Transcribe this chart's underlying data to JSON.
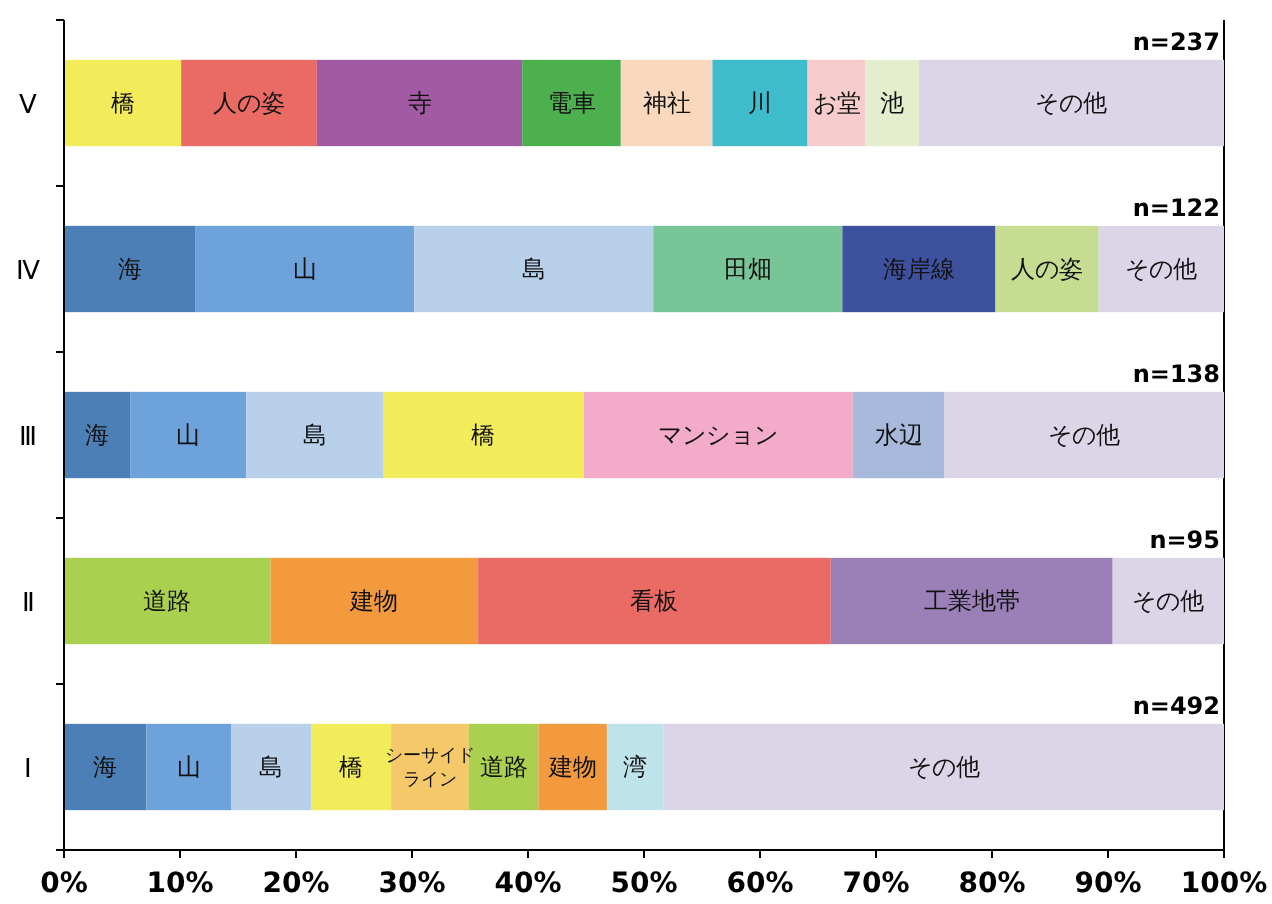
{
  "chart_data": {
    "type": "bar",
    "orientation": "horizontal",
    "stacked": true,
    "categories": [
      "Ⅴ",
      "Ⅳ",
      "Ⅲ",
      "Ⅱ",
      "Ⅰ"
    ],
    "xlim": [
      0,
      100
    ],
    "xticks": [
      {
        "value": 0,
        "label": "0%"
      },
      {
        "value": 10,
        "label": "10%"
      },
      {
        "value": 20,
        "label": "20%"
      },
      {
        "value": 30,
        "label": "30%"
      },
      {
        "value": 40,
        "label": "40%"
      },
      {
        "value": 50,
        "label": "50%"
      },
      {
        "value": 60,
        "label": "60%"
      },
      {
        "value": 70,
        "label": "70%"
      },
      {
        "value": 80,
        "label": "80%"
      },
      {
        "value": 90,
        "label": "90%"
      },
      {
        "value": 100,
        "label": "100%"
      }
    ],
    "grid": false,
    "series": [
      {
        "values": [
          10.1,
          11.3,
          5.7,
          17.8,
          7.1
        ],
        "colors": [
          "#f2ec5a",
          "#4b7fb5",
          "#4b7fb5",
          "#a9d04f",
          "#4b7fb5"
        ],
        "value_labels": [
          "橋",
          "海",
          "海",
          "道路",
          "海"
        ]
      },
      {
        "values": [
          11.7,
          18.9,
          10.0,
          17.9,
          7.3
        ],
        "colors": [
          "#ea6a64",
          "#6ea2da",
          "#6ea2da",
          "#f39a3f",
          "#6ea2da"
        ],
        "value_labels": [
          "人の姿",
          "山",
          "山",
          "建物",
          "山"
        ]
      },
      {
        "values": [
          17.7,
          20.6,
          11.8,
          30.4,
          6.9
        ],
        "colors": [
          "#a35aa5",
          "#b9d0ea",
          "#b9d0ea",
          "#ea6a64",
          "#b9d0ea"
        ],
        "value_labels": [
          "寺",
          "島",
          "島",
          "看板",
          "島"
        ]
      },
      {
        "values": [
          8.5,
          16.3,
          17.3,
          24.3,
          6.9
        ],
        "colors": [
          "#4db04f",
          "#78c597",
          "#f2ec5a",
          "#9b80b8",
          "#f2ec5a"
        ],
        "value_labels": [
          "電車",
          "田畑",
          "橋",
          "工業地帯",
          "橋"
        ]
      },
      {
        "values": [
          7.9,
          13.2,
          23.2,
          9.6,
          6.7
        ],
        "colors": [
          "#f9d8bd",
          "#3e519f",
          "#f2abc9",
          "#dcd5e8",
          "#f5c96a"
        ],
        "value_labels": [
          "神社",
          "海岸線",
          "マンション",
          "その他",
          "シーサイドライン"
        ]
      },
      {
        "values": [
          8.2,
          8.9,
          7.9,
          null,
          6.0
        ],
        "colors": [
          "#3fbccb",
          "#c6dd91",
          "#a9b9dc",
          null,
          "#a9d04f"
        ],
        "value_labels": [
          "川",
          "人の姿",
          "水辺",
          null,
          "道路"
        ]
      },
      {
        "values": [
          5.0,
          10.8,
          24.1,
          null,
          5.9
        ],
        "colors": [
          "#f6cccc",
          "#dcd5e8",
          "#dcd5e8",
          null,
          "#f39a3f"
        ],
        "value_labels": [
          "お堂",
          "その他",
          "その他",
          null,
          "建物"
        ]
      },
      {
        "values": [
          4.6,
          null,
          null,
          null,
          4.9
        ],
        "colors": [
          "#e4edcc",
          null,
          null,
          null,
          "#bfe3ea"
        ],
        "value_labels": [
          "池",
          null,
          null,
          null,
          "湾"
        ]
      },
      {
        "values": [
          26.3,
          null,
          null,
          null,
          48.3
        ],
        "colors": [
          "#dcd5e8",
          null,
          null,
          null,
          "#dcd5e8"
        ],
        "value_labels": [
          "その他",
          null,
          null,
          null,
          "その他"
        ]
      }
    ],
    "annotations": [
      "n=237",
      "n=122",
      "n=138",
      "n=95",
      "n=492"
    ]
  }
}
